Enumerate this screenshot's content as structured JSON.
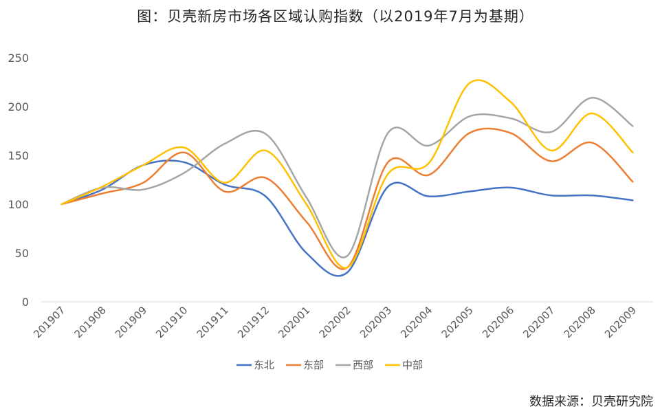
{
  "title": "图：贝壳新房市场各区域认购指数（以2019年7月为基期）",
  "source": "数据来源：贝壳研究院",
  "chart_data": {
    "type": "line",
    "categories": [
      "201907",
      "201908",
      "201909",
      "201910",
      "201911",
      "201912",
      "202001",
      "202002",
      "202003",
      "202004",
      "202005",
      "202006",
      "202007",
      "202008",
      "202009"
    ],
    "ylim": [
      0,
      250
    ],
    "yticks": [
      0,
      50,
      100,
      150,
      200,
      250
    ],
    "grid": false,
    "smooth": true,
    "legend_position": "bottom",
    "series": [
      {
        "name": "东北",
        "color": "#4472C4",
        "values": [
          100,
          115,
          140,
          143,
          120,
          108,
          50,
          30,
          118,
          108,
          113,
          117,
          109,
          109,
          104
        ]
      },
      {
        "name": "东部",
        "color": "#ED7D31",
        "values": [
          100,
          111,
          122,
          153,
          113,
          127,
          82,
          35,
          143,
          130,
          173,
          173,
          144,
          163,
          123
        ]
      },
      {
        "name": "西部",
        "color": "#A5A5A5",
        "values": [
          100,
          117,
          115,
          132,
          162,
          172,
          107,
          47,
          173,
          160,
          190,
          188,
          174,
          209,
          180
        ]
      },
      {
        "name": "中部",
        "color": "#FFC000",
        "values": [
          100,
          118,
          140,
          158,
          122,
          155,
          100,
          35,
          131,
          142,
          224,
          205,
          155,
          193,
          153
        ]
      }
    ]
  }
}
